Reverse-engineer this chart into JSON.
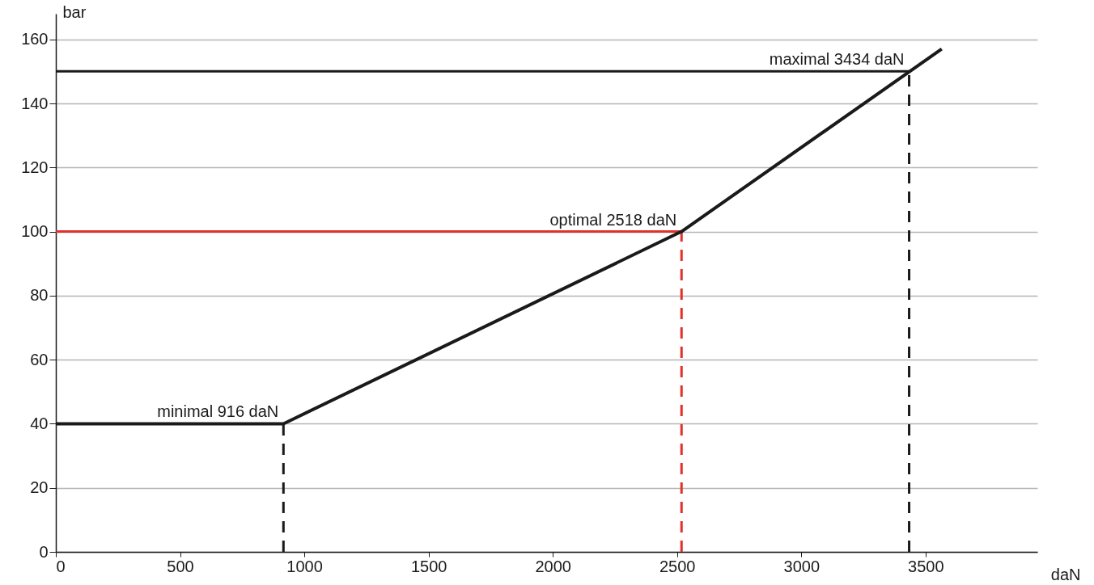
{
  "chart_data": {
    "type": "line",
    "xlabel": "daN",
    "ylabel": "bar",
    "xlim": [
      0,
      3950
    ],
    "ylim": [
      0,
      168
    ],
    "xticks": [
      0,
      500,
      1000,
      1500,
      2000,
      2500,
      3000,
      3500
    ],
    "yticks": [
      0,
      20,
      40,
      60,
      80,
      100,
      120,
      140,
      160
    ],
    "grid": "y",
    "series": [
      {
        "color": "#1a1a1a",
        "x": [
          0,
          916,
          2518,
          3565
        ],
        "values": [
          40,
          40,
          100,
          157
        ],
        "line_style": "solid"
      },
      {
        "color": "#1a1a1a",
        "x": [
          0,
          3434
        ],
        "values": [
          150,
          150
        ],
        "line_style": "solid"
      },
      {
        "color": "#e0322b",
        "x": [
          0,
          2518
        ],
        "values": [
          100,
          100
        ],
        "line_style": "solid"
      },
      {
        "color": "#1a1a1a",
        "x": [
          916,
          916
        ],
        "values": [
          0,
          40
        ],
        "line_style": "dashed"
      },
      {
        "color": "#e0322b",
        "x": [
          2518,
          2518
        ],
        "values": [
          0,
          100
        ],
        "line_style": "dashed"
      },
      {
        "color": "#1a1a1a",
        "x": [
          3434,
          3434
        ],
        "values": [
          0,
          150
        ],
        "line_style": "dashed"
      }
    ],
    "annotations": [
      {
        "text": "minimal 916 daN",
        "x": 916,
        "y": 40
      },
      {
        "text": "optimal 2518 daN",
        "x": 2518,
        "y": 100
      },
      {
        "text": "maximal 3434 daN",
        "x": 3434,
        "y": 150
      }
    ]
  }
}
